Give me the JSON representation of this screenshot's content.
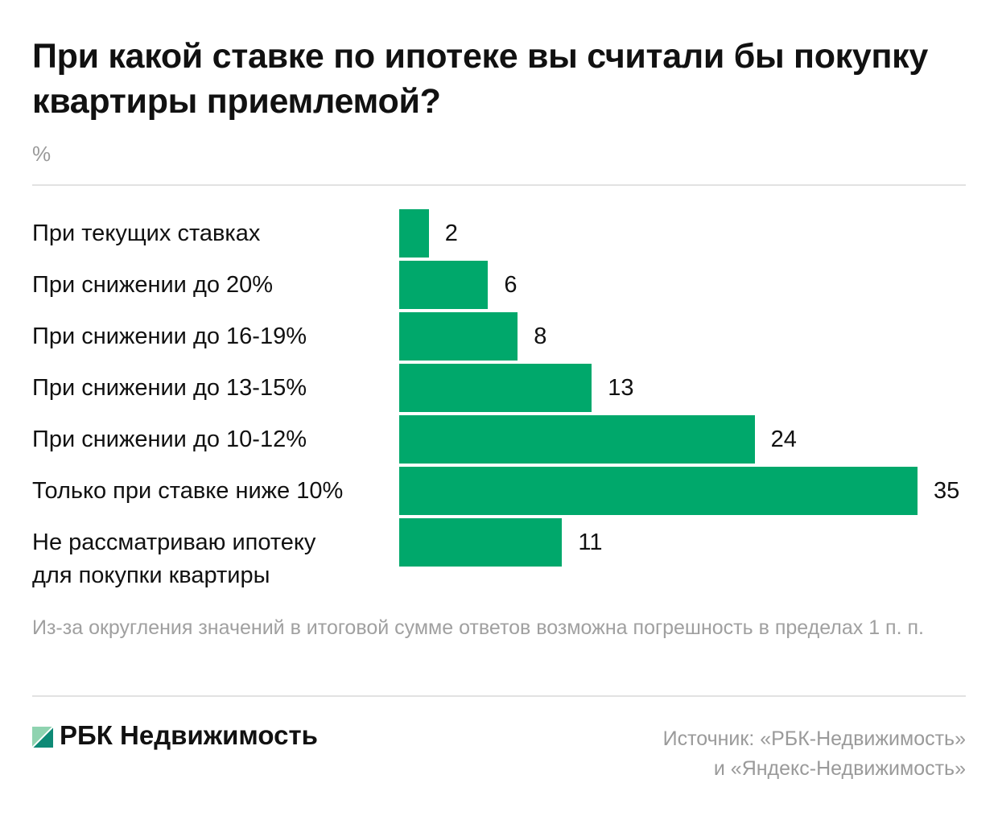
{
  "chart_data": {
    "type": "bar",
    "orientation": "horizontal",
    "title": "При какой ставке по ипотеке вы считали бы покупку квартиры приемлемой?",
    "unit": "%",
    "categories": [
      "При текущих ставках",
      "При снижении до 20%",
      "При снижении до 16-19%",
      "При снижении до 13-15%",
      "При снижении до 10-12%",
      "Только при ставке ниже 10%",
      "Не рассматриваю ипотеку для покупки квартиры"
    ],
    "label_lines": [
      [
        "При текущих ставках"
      ],
      [
        "При снижении до 20%"
      ],
      [
        "При снижении до 16-19%"
      ],
      [
        "При снижении до 13-15%"
      ],
      [
        "При снижении до 10-12%"
      ],
      [
        "Только при ставке ниже 10%"
      ],
      [
        "Не рассматриваю ипотеку",
        "для покупки квартиры"
      ]
    ],
    "values": [
      2,
      6,
      8,
      13,
      24,
      35,
      11
    ],
    "xlim": [
      0,
      35
    ],
    "bar_color": "#00a86b",
    "grid": false
  },
  "note": "Из-за округления значений в итоговой сумме ответов возможна погрешность в пределах 1 п. п.",
  "brand": "РБК Недвижимость",
  "source_line1": "Источник: «РБК-Недвижимость»",
  "source_line2": "и «Яндекс-Недвижимость»"
}
